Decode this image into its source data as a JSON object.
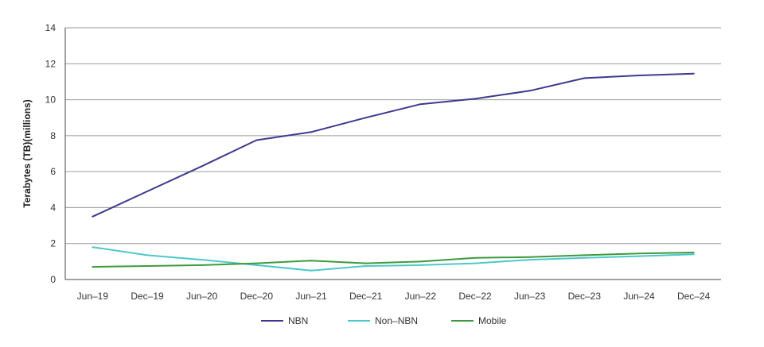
{
  "chart_data": {
    "type": "line",
    "categories": [
      "Jun–19",
      "Dec–19",
      "Jun–20",
      "Dec–20",
      "Jun–21",
      "Dec–21",
      "Jun–22",
      "Dec–22",
      "Jun–23",
      "Dec–23",
      "Jun–24",
      "Dec–24"
    ],
    "series": [
      {
        "name": "NBN",
        "color": "#3b3a8f",
        "values": [
          3.5,
          4.9,
          6.3,
          7.75,
          8.2,
          9.0,
          9.75,
          10.05,
          10.5,
          11.2,
          11.35,
          11.45
        ]
      },
      {
        "name": "Non–NBN",
        "color": "#4dc8c8",
        "values": [
          1.8,
          1.35,
          1.1,
          0.8,
          0.5,
          0.75,
          0.8,
          0.9,
          1.1,
          1.2,
          1.3,
          1.4
        ]
      },
      {
        "name": "Mobile",
        "color": "#3e9a3e",
        "values": [
          0.7,
          0.75,
          0.8,
          0.9,
          1.05,
          0.9,
          1.0,
          1.2,
          1.25,
          1.35,
          1.45,
          1.5
        ]
      }
    ],
    "title": "",
    "xlabel": "",
    "ylabel": "Terabytes (TB)(millions)",
    "ylim": [
      0,
      14
    ],
    "yticks": [
      0,
      2,
      4,
      6,
      8,
      10,
      12,
      14
    ],
    "grid": true,
    "legend_position": "bottom-center"
  }
}
